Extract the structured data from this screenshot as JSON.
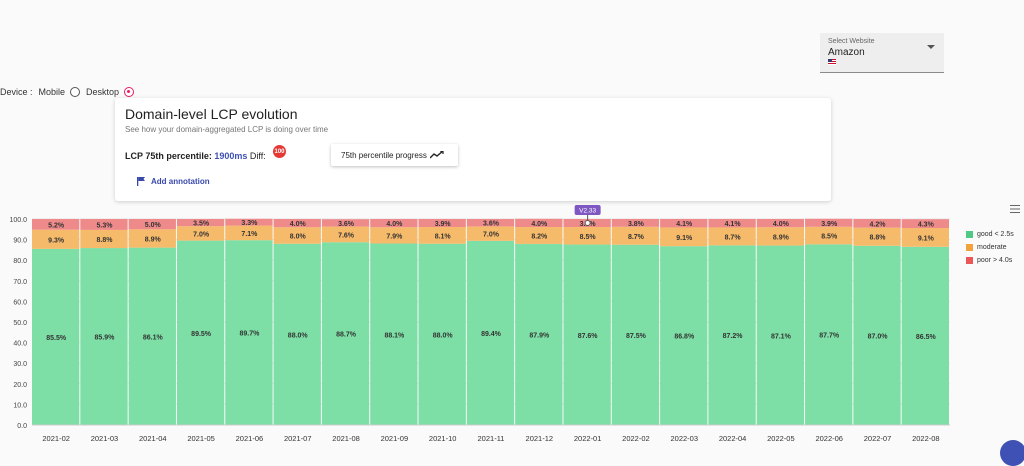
{
  "website_select": {
    "label": "Select Website",
    "value": "Amazon",
    "flag_icon": "us-flag-icon"
  },
  "device": {
    "label": "Device :",
    "options": [
      {
        "label": "Mobile",
        "checked": false
      },
      {
        "label": "Desktop",
        "checked": true
      }
    ]
  },
  "card": {
    "title": "Domain-level LCP evolution",
    "subtitle": "See how your domain-aggregated LCP is doing over time",
    "metric_label": "LCP 75th percentile:",
    "metric_value": "1900ms",
    "diff_label": "Diff:",
    "diff_badge": "100",
    "progress_button": "75th percentile progress",
    "annotation_button": "Add annotation"
  },
  "colors": {
    "good": "#7ddea6",
    "moderate": "#f6ba6b",
    "poor": "#ef8a8a",
    "accent": "#3f51b5",
    "annotation": "#7e57c2"
  },
  "chart_data": {
    "type": "bar",
    "stacked": true,
    "categories": [
      "2021-02",
      "2021-03",
      "2021-04",
      "2021-05",
      "2021-06",
      "2021-07",
      "2021-08",
      "2021-09",
      "2021-10",
      "2021-11",
      "2021-12",
      "2022-01",
      "2022-02",
      "2022-03",
      "2022-04",
      "2022-05",
      "2022-06",
      "2022-07",
      "2022-08"
    ],
    "series": [
      {
        "name": "good < 2.5s",
        "values": [
          85.5,
          85.9,
          86.1,
          89.5,
          89.7,
          88.0,
          88.7,
          88.1,
          88.0,
          89.4,
          87.9,
          87.6,
          87.5,
          86.8,
          87.2,
          87.1,
          87.7,
          87.0,
          86.5
        ]
      },
      {
        "name": "moderate",
        "values": [
          9.3,
          8.8,
          8.9,
          7.0,
          7.1,
          8.0,
          7.6,
          7.9,
          8.1,
          7.0,
          8.2,
          8.5,
          8.7,
          9.1,
          8.7,
          8.9,
          8.5,
          8.8,
          9.1
        ]
      },
      {
        "name": "poor > 4.0s",
        "values": [
          5.2,
          5.3,
          5.0,
          3.5,
          3.3,
          4.0,
          3.6,
          4.0,
          3.9,
          3.6,
          4.0,
          3.9,
          3.8,
          4.1,
          4.1,
          4.0,
          3.9,
          4.2,
          4.3
        ]
      }
    ],
    "ylim": [
      0,
      100
    ],
    "yticks": [
      "0.0",
      "10.0",
      "20.0",
      "30.0",
      "40.0",
      "50.0",
      "60.0",
      "70.0",
      "80.0",
      "90.0",
      "100.0"
    ],
    "annotation": {
      "label": "V2.33",
      "category": "2022-01"
    },
    "grid": true,
    "legend_position": "right"
  }
}
